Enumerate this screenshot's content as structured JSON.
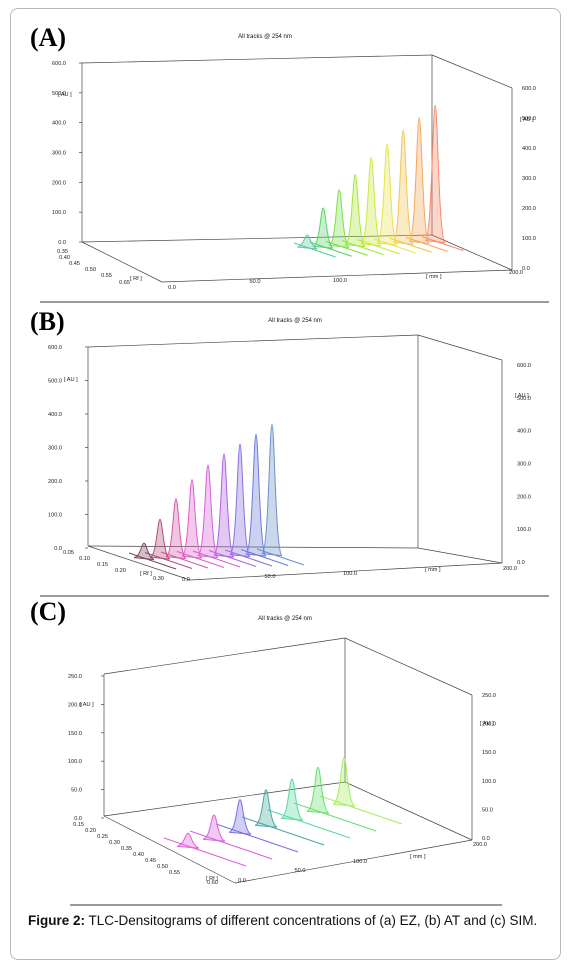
{
  "figure": {
    "label": "Figure 2:",
    "caption": "TLC-Densitograms of different concentrations of (a) EZ, (b) AT and (c) SIM."
  },
  "chart_data": [
    {
      "panel": "(A)",
      "type": "area",
      "title": "All tracks @ 254 nm",
      "ylabel": "[ AU ]",
      "xlabel": "[ mm ]",
      "depth_label": "[ Rf ]",
      "y_ticks": [
        "0.0",
        "100.0",
        "200.0",
        "300.0",
        "400.0",
        "500.0",
        "600.0"
      ],
      "y_ticks_right": [
        "0.0",
        "100.0",
        "200.0",
        "300.0",
        "400.0",
        "500.0",
        "600.0"
      ],
      "x_ticks": [
        "0.0",
        "50.0",
        "100.0",
        "200.0"
      ],
      "depth_ticks": [
        "0.35",
        "0.40",
        "0.45",
        "0.50",
        "0.55",
        "0.65"
      ],
      "ylim": [
        0,
        600
      ],
      "colors": [
        "#5fc8a8",
        "#58d36a",
        "#7ee04a",
        "#a6e63c",
        "#c9ea3c",
        "#e8e24c",
        "#f0c65a",
        "#f5a65c",
        "#f58a6a"
      ],
      "peak_values": [
        45,
        135,
        195,
        245,
        300,
        345,
        390,
        430,
        470
      ]
    },
    {
      "panel": "(B)",
      "type": "area",
      "title": "All tracks @ 254 nm",
      "ylabel": "[ AU ]",
      "xlabel": "[ mm ]",
      "depth_label": "[ Rf ]",
      "y_ticks": [
        "0.0",
        "100.0",
        "200.0",
        "300.0",
        "400.0",
        "500.0",
        "600.0"
      ],
      "y_ticks_right": [
        "0.0",
        "100.0",
        "200.0",
        "300.0",
        "400.0",
        "500.0",
        "600.0"
      ],
      "x_ticks": [
        "0.0",
        "50.0",
        "100.0",
        "200.0"
      ],
      "depth_ticks": [
        "0.05",
        "0.10",
        "0.15",
        "0.20",
        "0.30"
      ],
      "ylim": [
        0,
        600
      ],
      "colors": [
        "#7a4a5a",
        "#b0507a",
        "#d45aa8",
        "#e060c8",
        "#d560d8",
        "#b060e0",
        "#8a70e0",
        "#6c7ad8",
        "#6a90c8"
      ],
      "peak_values": [
        50,
        125,
        190,
        250,
        295,
        330,
        360,
        390,
        420
      ]
    },
    {
      "panel": "(C)",
      "type": "area",
      "title": "All tracks @ 254 nm",
      "ylabel": "[ AU ]",
      "xlabel": "[ mm ]",
      "depth_label": "[ Rf ]",
      "y_ticks": [
        "0.0",
        "50.0",
        "100.0",
        "150.0",
        "200.0",
        "250.0"
      ],
      "y_ticks_right": [
        "0.0",
        "50.0",
        "100.0",
        "150.0",
        "200.0",
        "250.0"
      ],
      "x_ticks": [
        "0.0",
        "50.0",
        "100.0",
        "200.0"
      ],
      "depth_ticks": [
        "0.15",
        "0.20",
        "0.25",
        "0.30",
        "0.35",
        "0.40",
        "0.45",
        "0.50",
        "0.55",
        "0.60"
      ],
      "ylim": [
        0,
        250
      ],
      "colors": [
        "#e060d8",
        "#d860e0",
        "#7a70e8",
        "#4aa8a0",
        "#5ad8a0",
        "#66e070",
        "#a8ec60"
      ],
      "peak_values": [
        25,
        45,
        60,
        65,
        72,
        80,
        85
      ]
    }
  ]
}
